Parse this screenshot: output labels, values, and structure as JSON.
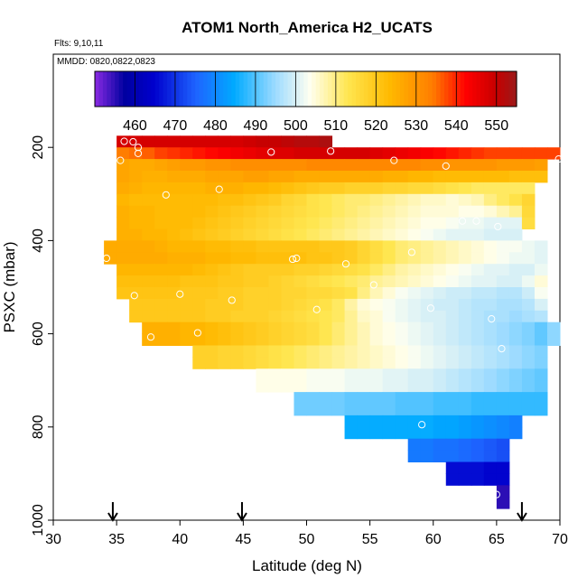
{
  "chart_data": {
    "type": "heatmap",
    "title": "ATOM1 North_America H2_UCATS",
    "annotations": {
      "flights": "Flts: 9,10,11",
      "dates": "MMDD: 0820,0822,0823"
    },
    "xlabel": "Latitude (deg N)",
    "ylabel": "PSXC (mbar)",
    "xlim": [
      30,
      70
    ],
    "ylim": [
      1000,
      0
    ],
    "x_ticks": [
      "30",
      "35",
      "40",
      "45",
      "50",
      "55",
      "60",
      "65",
      "70"
    ],
    "y_ticks": [
      "200",
      "400",
      "600",
      "800",
      "1000"
    ],
    "colorbar": {
      "min": 450,
      "max": 555,
      "tick_labels": [
        "460",
        "470",
        "480",
        "490",
        "500",
        "510",
        "520",
        "530",
        "540",
        "550"
      ]
    },
    "cell_size": {
      "dlat": 1,
      "dp": 25
    },
    "rows": [
      {
        "p": 187.5,
        "lat_start": 35,
        "values": [
          548,
          548,
          548,
          548,
          548,
          548,
          548,
          548,
          548,
          548,
          549,
          550,
          550,
          551,
          552,
          552,
          553
        ]
      },
      {
        "p": 212.5,
        "lat_start": 35,
        "values": [
          534,
          535,
          536,
          538,
          539,
          540,
          541,
          542,
          543,
          544,
          545,
          546,
          547,
          547,
          548,
          548,
          548,
          548,
          548,
          548,
          547,
          546,
          545,
          544,
          543,
          542,
          541,
          540,
          539,
          538,
          538,
          538,
          538,
          538,
          538
        ]
      },
      {
        "p": 237.5,
        "lat_start": 35,
        "values": [
          527,
          526,
          526,
          527,
          528,
          529,
          529,
          530,
          530,
          531,
          531,
          531,
          531,
          531,
          531,
          532,
          532,
          532,
          532,
          532,
          532,
          532,
          532,
          532,
          531,
          531,
          530,
          530,
          530,
          530,
          529,
          529,
          529,
          528
        ]
      },
      {
        "p": 262.5,
        "lat_start": 35,
        "values": [
          527,
          526,
          525,
          525,
          526,
          526,
          526,
          527,
          527,
          527,
          528,
          528,
          527,
          527,
          526,
          526,
          526,
          526,
          526,
          526,
          526,
          525,
          525,
          524,
          524,
          523,
          523,
          523,
          523,
          523,
          523,
          522,
          522,
          522
        ]
      },
      {
        "p": 287.5,
        "lat_start": 35,
        "values": [
          526,
          525,
          524,
          524,
          524,
          524,
          524,
          525,
          525,
          525,
          524,
          524,
          523,
          522,
          521,
          520,
          519,
          519,
          518,
          518,
          518,
          517,
          517,
          516,
          516,
          515,
          514,
          513,
          512,
          512,
          512,
          512,
          512
        ]
      },
      {
        "p": 312.5,
        "lat_start": 35,
        "values": [
          524,
          523,
          523,
          523,
          523,
          523,
          523,
          523,
          522,
          522,
          521,
          520,
          519,
          517,
          516,
          514,
          513,
          512,
          511,
          511,
          510,
          509,
          508,
          507,
          506,
          506,
          505,
          506,
          507,
          510,
          512,
          514,
          517
        ]
      },
      {
        "p": 337.5,
        "lat_start": 35,
        "values": [
          525,
          524,
          524,
          523,
          523,
          523,
          523,
          522,
          521,
          520,
          519,
          518,
          517,
          516,
          515,
          514,
          513,
          512,
          511,
          510,
          509,
          508,
          507,
          506,
          505,
          505,
          505,
          504,
          504,
          505,
          507,
          509,
          516
        ]
      },
      {
        "p": 362.5,
        "lat_start": 35,
        "values": [
          525,
          524,
          524,
          523,
          523,
          523,
          522,
          521,
          520,
          519,
          518,
          517,
          516,
          515,
          514,
          513,
          512,
          511,
          510,
          509,
          508,
          507,
          506,
          505,
          504,
          504,
          503,
          502,
          502,
          501,
          501,
          501,
          515
        ]
      },
      {
        "p": 387.5,
        "lat_start": 35,
        "values": [
          525,
          525,
          524,
          524,
          523,
          522,
          521,
          520,
          519,
          518,
          517,
          516,
          515,
          514,
          513,
          512,
          511,
          510,
          509,
          508,
          507,
          506,
          505,
          504,
          503,
          502,
          501,
          501,
          501,
          500,
          500,
          500
        ]
      },
      {
        "p": 412.5,
        "lat_start": 34,
        "values": [
          526,
          526,
          526,
          526,
          525,
          524,
          524,
          524,
          523,
          523,
          522,
          522,
          521,
          521,
          521,
          521,
          521,
          520,
          520,
          519,
          517,
          515,
          513,
          511,
          510,
          509,
          508,
          507,
          506,
          505,
          504,
          503,
          503,
          502,
          501
        ]
      },
      {
        "p": 437.5,
        "lat_start": 34,
        "values": [
          526,
          526,
          526,
          526,
          526,
          525,
          525,
          525,
          524,
          524,
          523,
          523,
          522,
          522,
          522,
          522,
          521,
          521,
          520,
          519,
          517,
          515,
          513,
          511,
          510,
          509,
          508,
          507,
          506,
          505,
          504,
          503,
          502,
          502,
          501
        ]
      },
      {
        "p": 462.5,
        "lat_start": 35,
        "values": [
          524,
          524,
          524,
          524,
          524,
          524,
          523,
          522,
          521,
          520,
          519,
          519,
          519,
          519,
          518,
          518,
          517,
          516,
          515,
          514,
          512,
          510,
          508,
          507,
          506,
          505,
          504,
          503,
          502,
          501,
          501,
          500,
          500,
          502
        ]
      },
      {
        "p": 487.5,
        "lat_start": 35,
        "values": [
          522,
          522,
          522,
          522,
          522,
          521,
          521,
          521,
          520,
          520,
          519,
          519,
          518,
          517,
          516,
          515,
          514,
          513,
          512,
          511,
          509,
          508,
          507,
          506,
          505,
          504,
          503,
          502,
          501,
          501,
          500,
          500,
          502,
          505
        ]
      },
      {
        "p": 512.5,
        "lat_start": 35,
        "values": [
          521,
          521,
          521,
          521,
          521,
          520,
          520,
          520,
          519,
          519,
          518,
          518,
          518,
          517,
          517,
          516,
          516,
          515,
          514,
          510,
          507,
          505,
          503,
          502,
          501,
          500,
          499,
          499,
          498,
          498,
          497,
          497,
          499,
          503
        ]
      },
      {
        "p": 537.5,
        "lat_start": 36,
        "values": [
          520,
          520,
          520,
          520,
          520,
          520,
          519,
          519,
          519,
          518,
          518,
          518,
          517,
          516,
          515,
          514,
          512,
          508,
          505,
          504,
          503,
          502,
          501,
          500,
          499,
          499,
          498,
          497,
          497,
          496,
          496,
          497,
          500
        ]
      },
      {
        "p": 562.5,
        "lat_start": 36,
        "values": [
          520,
          520,
          520,
          520,
          520,
          520,
          519,
          519,
          518,
          518,
          518,
          517,
          516,
          515,
          514,
          513,
          512,
          509,
          506,
          505,
          503,
          502,
          501,
          500,
          500,
          499,
          498,
          497,
          496,
          496,
          495,
          496,
          497
        ]
      },
      {
        "p": 587.5,
        "lat_start": 37,
        "values": [
          525,
          525,
          525,
          524,
          524,
          523,
          522,
          521,
          520,
          519,
          518,
          517,
          516,
          515,
          513,
          511,
          509,
          507,
          505,
          504,
          503,
          502,
          501,
          500,
          499,
          498,
          497,
          496,
          495,
          494,
          493,
          491,
          494
        ]
      },
      {
        "p": 612.5,
        "lat_start": 37,
        "values": [
          525,
          525,
          525,
          524,
          524,
          523,
          522,
          521,
          520,
          519,
          518,
          517,
          516,
          515,
          513,
          511,
          509,
          507,
          505,
          504,
          503,
          502,
          501,
          500,
          499,
          498,
          497,
          496,
          495,
          494,
          493,
          491,
          494
        ]
      },
      {
        "p": 637.5,
        "lat_start": 41,
        "values": [
          518,
          518,
          517,
          517,
          516,
          515,
          514,
          513,
          512,
          511,
          510,
          509,
          508,
          507,
          506,
          505,
          504,
          503,
          502,
          501,
          500,
          499,
          498,
          497,
          496,
          495,
          494,
          493
        ]
      },
      {
        "p": 662.5,
        "lat_start": 41,
        "values": [
          518,
          518,
          517,
          517,
          516,
          515,
          514,
          513,
          512,
          511,
          510,
          509,
          508,
          507,
          506,
          505,
          504,
          503,
          502,
          501,
          500,
          499,
          498,
          497,
          496,
          495,
          494,
          493
        ]
      },
      {
        "p": 687.5,
        "lat_start": 46,
        "values": [
          504,
          504,
          504,
          504,
          503,
          503,
          503,
          502,
          502,
          502,
          501,
          501,
          500,
          500,
          499,
          498,
          497,
          496,
          495,
          494,
          493,
          492,
          491
        ]
      },
      {
        "p": 712.5,
        "lat_start": 46,
        "values": [
          504,
          504,
          504,
          504,
          503,
          503,
          503,
          502,
          502,
          502,
          501,
          501,
          500,
          500,
          499,
          498,
          497,
          496,
          495,
          494,
          493,
          492,
          491
        ]
      },
      {
        "p": 737.5,
        "lat_start": 49,
        "values": [
          492,
          492,
          492,
          492,
          491,
          491,
          491,
          491,
          490,
          490,
          490,
          489,
          489,
          489,
          488,
          488,
          488,
          488,
          488,
          488
        ]
      },
      {
        "p": 762.5,
        "lat_start": 49,
        "values": [
          492,
          492,
          492,
          492,
          491,
          491,
          491,
          491,
          490,
          490,
          490,
          489,
          489,
          489,
          488,
          488,
          488,
          488,
          488,
          488
        ]
      },
      {
        "p": 787.5,
        "lat_start": 53,
        "values": [
          485,
          485,
          485,
          485,
          485,
          485,
          485,
          484,
          484,
          483,
          482,
          481,
          480,
          479
        ]
      },
      {
        "p": 812.5,
        "lat_start": 53,
        "values": [
          485,
          485,
          485,
          485,
          485,
          485,
          485,
          484,
          484,
          483,
          482,
          481,
          480,
          479
        ]
      },
      {
        "p": 837.5,
        "lat_start": 58,
        "values": [
          478,
          478,
          477,
          477,
          476,
          475,
          474,
          473
        ]
      },
      {
        "p": 862.5,
        "lat_start": 58,
        "values": [
          478,
          478,
          477,
          477,
          476,
          475,
          474,
          473
        ]
      },
      {
        "p": 887.5,
        "lat_start": 61,
        "values": [
          466,
          466,
          466,
          465,
          465
        ]
      },
      {
        "p": 912.5,
        "lat_start": 61,
        "values": [
          466,
          466,
          466,
          465,
          465
        ]
      },
      {
        "p": 937.5,
        "lat_start": 65,
        "values": [
          455
        ]
      },
      {
        "p": 962.5,
        "lat_start": 65,
        "values": [
          455
        ]
      }
    ],
    "sample_points": [
      {
        "lat": 35.6,
        "p": 187
      },
      {
        "lat": 36.3,
        "p": 188
      },
      {
        "lat": 36.7,
        "p": 200
      },
      {
        "lat": 36.7,
        "p": 213
      },
      {
        "lat": 35.3,
        "p": 228
      },
      {
        "lat": 47.2,
        "p": 210
      },
      {
        "lat": 51.9,
        "p": 208
      },
      {
        "lat": 56.9,
        "p": 228
      },
      {
        "lat": 61.0,
        "p": 240
      },
      {
        "lat": 69.9,
        "p": 225
      },
      {
        "lat": 43.1,
        "p": 290
      },
      {
        "lat": 38.9,
        "p": 302
      },
      {
        "lat": 62.3,
        "p": 358
      },
      {
        "lat": 63.4,
        "p": 358
      },
      {
        "lat": 65.1,
        "p": 370
      },
      {
        "lat": 34.2,
        "p": 438
      },
      {
        "lat": 49.2,
        "p": 438
      },
      {
        "lat": 58.3,
        "p": 425
      },
      {
        "lat": 53.1,
        "p": 450
      },
      {
        "lat": 55.3,
        "p": 495
      },
      {
        "lat": 36.4,
        "p": 518
      },
      {
        "lat": 40.0,
        "p": 515
      },
      {
        "lat": 48.9,
        "p": 440
      },
      {
        "lat": 44.1,
        "p": 528
      },
      {
        "lat": 50.8,
        "p": 548
      },
      {
        "lat": 59.8,
        "p": 545
      },
      {
        "lat": 64.6,
        "p": 568
      },
      {
        "lat": 37.7,
        "p": 607
      },
      {
        "lat": 41.4,
        "p": 598
      },
      {
        "lat": 65.4,
        "p": 632
      },
      {
        "lat": 59.1,
        "p": 795
      },
      {
        "lat": 65.0,
        "p": 945
      }
    ],
    "flight_markers_lat": [
      34.7,
      44.9,
      67.0
    ]
  }
}
